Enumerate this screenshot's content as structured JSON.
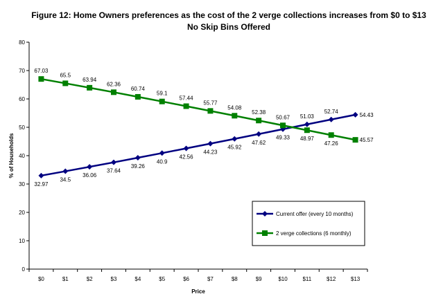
{
  "chart_data": {
    "type": "line",
    "title": "Figure 12: Home Owners preferences as the cost of the 2 verge collections increases from $0 to $13",
    "subtitle": "No Skip Bins Offered",
    "xlabel": "Price",
    "ylabel": "% of Households",
    "categories": [
      "$0",
      "$1",
      "$2",
      "$3",
      "$4",
      "$5",
      "$6",
      "$7",
      "$8",
      "$9",
      "$10",
      "$11",
      "$12",
      "$13"
    ],
    "ylim": [
      0,
      80
    ],
    "yticks": [
      "0",
      "10",
      "20",
      "30",
      "40",
      "50",
      "60",
      "70",
      "80"
    ],
    "grid": false,
    "legend_position": "bottom-right",
    "series": [
      {
        "name": "Current offer (every 10 months)",
        "color": "#000080",
        "marker": "diamond",
        "values": [
          32.97,
          34.5,
          36.06,
          37.64,
          39.26,
          40.9,
          42.56,
          44.23,
          45.92,
          47.62,
          49.33,
          51.03,
          52.74,
          54.43
        ],
        "labels": [
          "32.97",
          "34.5",
          "36.06",
          "37.64",
          "39.26",
          "40.9",
          "42.56",
          "44.23",
          "45.92",
          "47.62",
          "49.33",
          "51.03",
          "52.74",
          "54.43"
        ]
      },
      {
        "name": "2 verge collections (6 monthly)",
        "color": "#008000",
        "marker": "square",
        "values": [
          67.03,
          65.5,
          63.94,
          62.36,
          60.74,
          59.1,
          57.44,
          55.77,
          54.08,
          52.38,
          50.67,
          48.97,
          47.26,
          45.57
        ],
        "labels": [
          "67.03",
          "65.5",
          "63.94",
          "62.36",
          "60.74",
          "59.1",
          "57.44",
          "55.77",
          "54.08",
          "52.38",
          "50.67",
          "48.97",
          "47.26",
          "45.57"
        ]
      }
    ]
  }
}
